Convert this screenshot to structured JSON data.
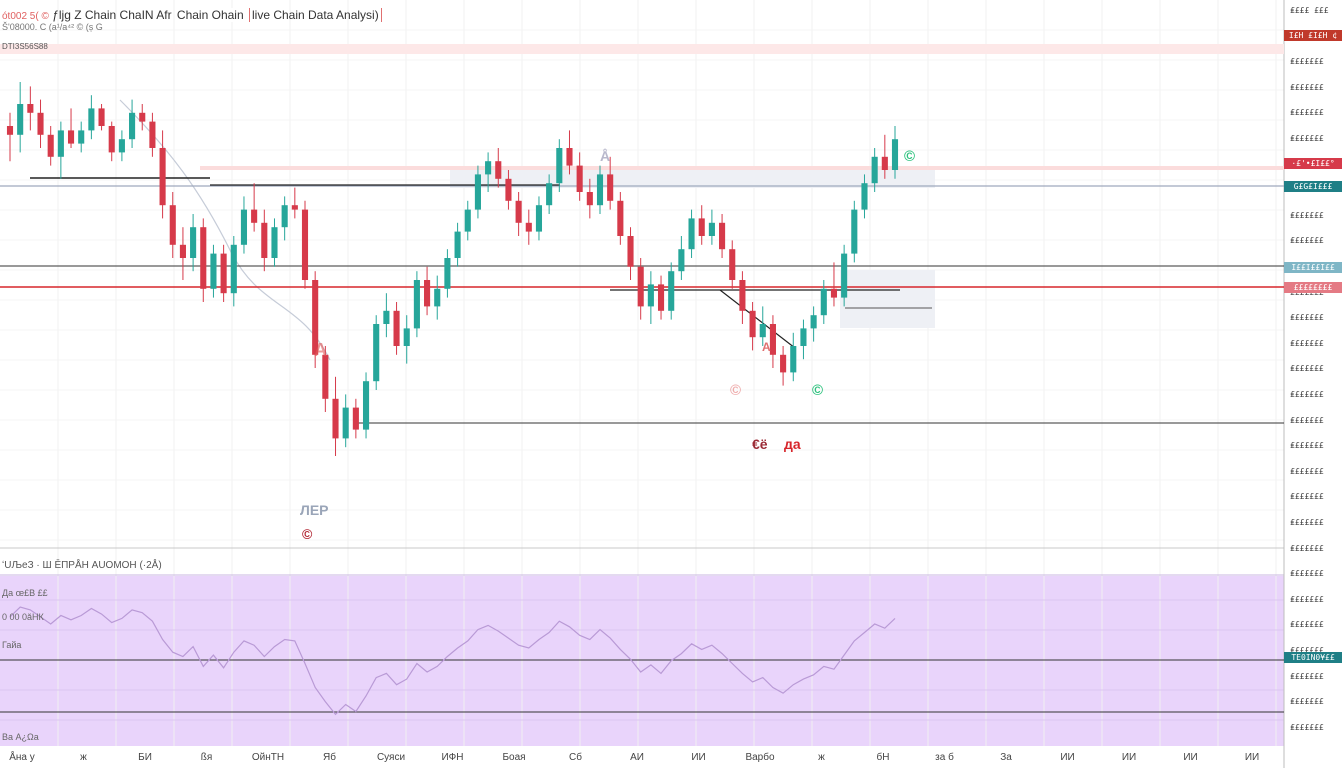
{
  "header": {
    "prefix": "ót002 5( ©",
    "line1": "ƒljg Z Chain ChaIN Afr",
    "line1_highlight": "Z",
    "line2": "Chain Ohain",
    "line3": "live Chain Data Analysi)",
    "sub_left": "DTI3S56S88",
    "sub_mid": "Š'08000. C (a¹/а⁴² © (ș G"
  },
  "price_tags": [
    {
      "text": "I£H £I£H ¢",
      "kind": "red"
    },
    {
      "text": "·£'•£I££°",
      "kind": "red"
    },
    {
      "text": "G£G£I£££",
      "kind": "teal"
    },
    {
      "text": "I££I££I££",
      "kind": "teal-light"
    },
    {
      "text": "££££££££",
      "kind": "red-light"
    },
    {
      "text": "TE0IN0¥££",
      "kind": "teal"
    }
  ],
  "y_axis_labels": [
    "₤£££ £££",
    "₤££££££",
    "₤££££££",
    "₤££££££",
    "₤££££££",
    "₤££££££",
    "₤££££££",
    "₤££££££",
    "₤££££££",
    "₤££££££",
    "₤££££££",
    "₤££££££",
    "₤££££££",
    "₤££££££",
    "₤££££££",
    "₤££££££",
    "₤££££££",
    "₤££££££",
    "₤££££££",
    "₤££££££",
    "₤££££££",
    "₤££££££",
    "₤££££££",
    "₤££££££",
    "₤££££££",
    "₤££££££",
    "₤££££££",
    "₤££££££",
    "₤££££££"
  ],
  "indicator": {
    "title": "ʻUЉеЗ · Ш ĒПРÅН АUОМОН",
    "period": "(·2Å)",
    "labels": [
      "Да œ£Β ££",
      "0 00 0ăНК",
      "Гайа",
      "Ва А¿Ωа"
    ]
  },
  "x_axis_labels": [
    "Åна у",
    "ж",
    "БИ",
    "ßя",
    "ОйнТН",
    "Яб",
    "Суяси",
    "ИФН",
    "Боая",
    "Сб",
    "АИ",
    "ИИ",
    "Варбо",
    "ж",
    "бН",
    "за б",
    "За",
    "ИИ",
    "ИИ",
    "ИИ",
    "ИИ"
  ],
  "markers": [
    {
      "text": "A",
      "color": "#e35a5a"
    },
    {
      "text": "ЛЕР",
      "color": "#9aa5b8"
    },
    {
      "text": "€ё",
      "color": "#9b2b36"
    },
    {
      "text": "да",
      "color": "#d7262c"
    },
    {
      "text": "©",
      "color": "#e06060"
    },
    {
      "text": "©",
      "color": "#2ec27e"
    },
    {
      "text": "©",
      "color": "#2ec27e"
    },
    {
      "text": "©",
      "color": "#b32a36"
    },
    {
      "text": "А",
      "color": "#e07070"
    },
    {
      "text": "Å",
      "color": "#b8b8cc"
    }
  ],
  "colors": {
    "bull": "#26a69a",
    "bear": "#d63a4a",
    "indicator_bg": "#e9d4fb",
    "hline_red": "#d7262c",
    "hline_dark": "#333333",
    "hline_grey": "#9fa9bd"
  },
  "chart_data": {
    "type": "candlestick",
    "title": "",
    "xlabel": "",
    "ylabel": "",
    "ylim": [
      0,
      100
    ],
    "ohlc": [
      [
        85.0,
        88.0,
        77.0,
        83.0
      ],
      [
        83.0,
        95.0,
        79.0,
        90.0
      ],
      [
        90.0,
        94.0,
        84.0,
        88.0
      ],
      [
        88.0,
        91.0,
        80.0,
        83.0
      ],
      [
        83.0,
        85.0,
        76.0,
        78.0
      ],
      [
        78.0,
        86.0,
        73.0,
        84.0
      ],
      [
        84.0,
        89.0,
        80.0,
        81.0
      ],
      [
        81.0,
        86.0,
        79.0,
        84.0
      ],
      [
        84.0,
        92.0,
        82.0,
        89.0
      ],
      [
        89.0,
        90.0,
        84.0,
        85.0
      ],
      [
        85.0,
        86.0,
        77.0,
        79.0
      ],
      [
        79.0,
        84.0,
        77.0,
        82.0
      ],
      [
        82.0,
        91.0,
        80.0,
        88.0
      ],
      [
        88.0,
        90.0,
        84.0,
        86.0
      ],
      [
        86.0,
        88.0,
        78.0,
        80.0
      ],
      [
        80.0,
        84.0,
        64.0,
        67.0
      ],
      [
        67.0,
        70.0,
        55.0,
        58.0
      ],
      [
        58.0,
        62.0,
        50.0,
        55.0
      ],
      [
        55.0,
        65.0,
        52.0,
        62.0
      ],
      [
        62.0,
        64.0,
        45.0,
        48.0
      ],
      [
        48.0,
        58.0,
        46.0,
        56.0
      ],
      [
        56.0,
        58.0,
        45.0,
        47.0
      ],
      [
        47.0,
        60.0,
        44.0,
        58.0
      ],
      [
        58.0,
        69.0,
        56.0,
        66.0
      ],
      [
        66.0,
        72.0,
        61.0,
        63.0
      ],
      [
        63.0,
        66.0,
        52.0,
        55.0
      ],
      [
        55.0,
        64.0,
        53.0,
        62.0
      ],
      [
        62.0,
        69.0,
        59.0,
        67.0
      ],
      [
        67.0,
        71.0,
        64.0,
        66.0
      ],
      [
        66.0,
        68.0,
        48.0,
        50.0
      ],
      [
        50.0,
        52.0,
        30.0,
        33.0
      ],
      [
        33.0,
        35.0,
        20.0,
        23.0
      ],
      [
        23.0,
        28.0,
        10.0,
        14.0
      ],
      [
        14.0,
        24.0,
        12.0,
        21.0
      ],
      [
        21.0,
        23.0,
        14.0,
        16.0
      ],
      [
        16.0,
        29.0,
        14.0,
        27.0
      ],
      [
        27.0,
        42.0,
        25.0,
        40.0
      ],
      [
        40.0,
        47.0,
        37.0,
        43.0
      ],
      [
        43.0,
        45.0,
        33.0,
        35.0
      ],
      [
        35.0,
        42.0,
        31.0,
        39.0
      ],
      [
        39.0,
        52.0,
        37.0,
        50.0
      ],
      [
        50.0,
        53.0,
        42.0,
        44.0
      ],
      [
        44.0,
        51.0,
        41.0,
        48.0
      ],
      [
        48.0,
        57.0,
        46.0,
        55.0
      ],
      [
        55.0,
        63.0,
        53.0,
        61.0
      ],
      [
        61.0,
        68.0,
        59.0,
        66.0
      ],
      [
        66.0,
        76.0,
        64.0,
        74.0
      ],
      [
        74.0,
        79.0,
        70.0,
        77.0
      ],
      [
        77.0,
        80.0,
        71.0,
        73.0
      ],
      [
        73.0,
        75.0,
        66.0,
        68.0
      ],
      [
        68.0,
        70.0,
        60.0,
        63.0
      ],
      [
        63.0,
        66.0,
        58.0,
        61.0
      ],
      [
        61.0,
        69.0,
        59.0,
        67.0
      ],
      [
        67.0,
        74.0,
        65.0,
        72.0
      ],
      [
        72.0,
        82.0,
        70.0,
        80.0
      ],
      [
        80.0,
        84.0,
        74.0,
        76.0
      ],
      [
        76.0,
        79.0,
        68.0,
        70.0
      ],
      [
        70.0,
        73.0,
        64.0,
        67.0
      ],
      [
        67.0,
        76.0,
        65.0,
        74.0
      ],
      [
        74.0,
        78.0,
        66.0,
        68.0
      ],
      [
        68.0,
        70.0,
        58.0,
        60.0
      ],
      [
        60.0,
        62.0,
        50.0,
        53.0
      ],
      [
        53.0,
        55.0,
        41.0,
        44.0
      ],
      [
        44.0,
        52.0,
        40.0,
        49.0
      ],
      [
        49.0,
        51.0,
        41.0,
        43.0
      ],
      [
        43.0,
        54.0,
        41.0,
        52.0
      ],
      [
        52.0,
        60.0,
        50.0,
        57.0
      ],
      [
        57.0,
        66.0,
        55.0,
        64.0
      ],
      [
        64.0,
        67.0,
        58.0,
        60.0
      ],
      [
        60.0,
        66.0,
        58.0,
        63.0
      ],
      [
        63.0,
        65.0,
        55.0,
        57.0
      ],
      [
        57.0,
        59.0,
        48.0,
        50.0
      ],
      [
        50.0,
        52.0,
        40.0,
        43.0
      ],
      [
        43.0,
        45.0,
        34.0,
        37.0
      ],
      [
        37.0,
        44.0,
        35.0,
        40.0
      ],
      [
        40.0,
        42.0,
        30.0,
        33.0
      ],
      [
        33.0,
        35.0,
        26.0,
        29.0
      ],
      [
        29.0,
        38.0,
        27.0,
        35.0
      ],
      [
        35.0,
        41.0,
        32.0,
        39.0
      ],
      [
        39.0,
        44.0,
        36.0,
        42.0
      ],
      [
        42.0,
        50.0,
        40.0,
        48.0
      ],
      [
        48.0,
        54.0,
        44.0,
        46.0
      ],
      [
        46.0,
        58.0,
        44.0,
        56.0
      ],
      [
        56.0,
        68.0,
        54.0,
        66.0
      ],
      [
        66.0,
        74.0,
        64.0,
        72.0
      ],
      [
        72.0,
        80.0,
        70.0,
        78.0
      ],
      [
        78.0,
        83.0,
        73.0,
        75.0
      ],
      [
        75.0,
        85.0,
        73.0,
        82.0
      ]
    ]
  }
}
